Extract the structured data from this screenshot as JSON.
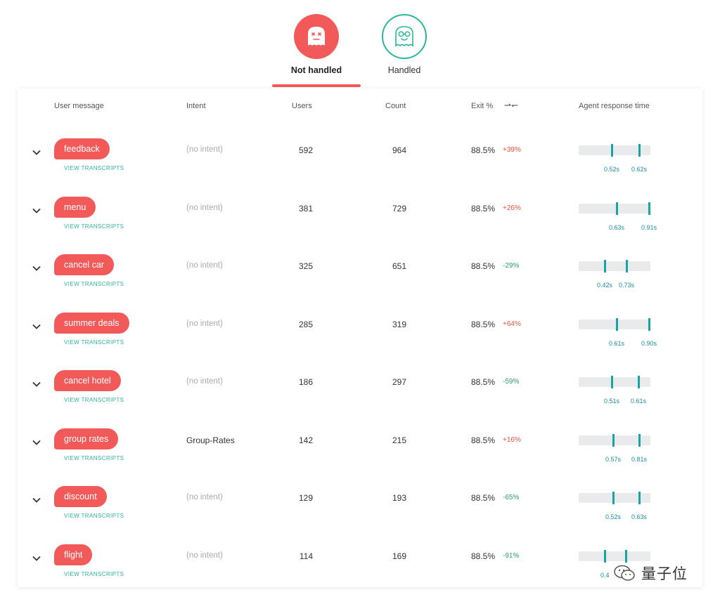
{
  "tabs": {
    "not_handled": "Not handled",
    "handled": "Handled"
  },
  "columns": {
    "user_message": "User message",
    "intent": "Intent",
    "users": "Users",
    "count": "Count",
    "exit": "Exit %",
    "sort": "⇀↽",
    "agent_response_time": "Agent response time"
  },
  "view_transcripts": "VIEW TRANSCRIPTS",
  "rows": [
    {
      "message": "feedback",
      "intent": "(no intent)",
      "users": "592",
      "count": "964",
      "exit": "88.5%",
      "delta": "+39%",
      "t1": "0.52s",
      "t2": "0.62s",
      "p1": 0.46,
      "p2": 0.84
    },
    {
      "message": "menu",
      "intent": "(no intent)",
      "users": "381",
      "count": "729",
      "exit": "88.5%",
      "delta": "+26%",
      "t1": "0.63s",
      "t2": "0.91s",
      "p1": 0.53,
      "p2": 0.98
    },
    {
      "message": "cancel car",
      "intent": "(no intent)",
      "users": "325",
      "count": "651",
      "exit": "88.5%",
      "delta": "-29%",
      "t1": "0.42s",
      "t2": "0.73s",
      "p1": 0.36,
      "p2": 0.67
    },
    {
      "message": "summer deals",
      "intent": "(no intent)",
      "users": "285",
      "count": "319",
      "exit": "88.5%",
      "delta": "+64%",
      "t1": "0.61s",
      "t2": "0.90s",
      "p1": 0.53,
      "p2": 0.98
    },
    {
      "message": "cancel hotel",
      "intent": "(no intent)",
      "users": "186",
      "count": "297",
      "exit": "88.5%",
      "delta": "-59%",
      "t1": "0.51s",
      "t2": "0.61s",
      "p1": 0.46,
      "p2": 0.83
    },
    {
      "message": "group rates",
      "intent": "Group-Rates",
      "users": "142",
      "count": "215",
      "exit": "88.5%",
      "delta": "+16%",
      "t1": "0.57s",
      "t2": "0.81s",
      "p1": 0.48,
      "p2": 0.84
    },
    {
      "message": "discount",
      "intent": "(no intent)",
      "users": "129",
      "count": "193",
      "exit": "88.5%",
      "delta": "-65%",
      "t1": "0.52s",
      "t2": "0.63s",
      "p1": 0.48,
      "p2": 0.84
    },
    {
      "message": "flight",
      "intent": "(no intent)",
      "users": "114",
      "count": "169",
      "exit": "88.5%",
      "delta": "-91%",
      "t1": "0.4",
      "t2": "",
      "p1": 0.36,
      "p2": 0.66
    }
  ],
  "watermark": "量子位",
  "colors": {
    "accent_red": "#f25a5a",
    "accent_green": "#2bb59b",
    "tick": "#1aa3a3"
  }
}
